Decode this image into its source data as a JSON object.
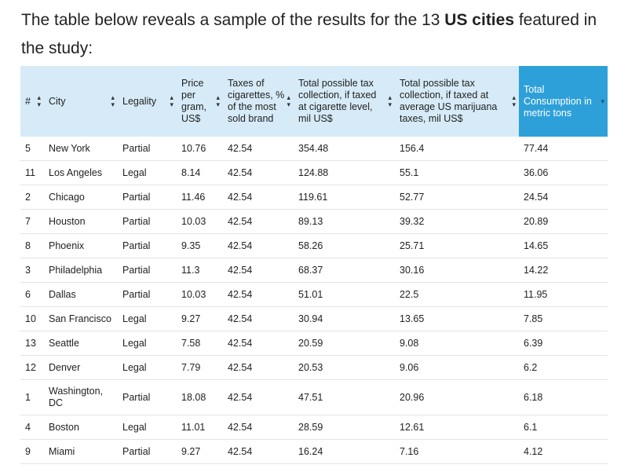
{
  "intro": {
    "text_before": "The table below reveals a sample of the results for the 13 ",
    "bold_text": "US cities",
    "text_after": " featured in the study:"
  },
  "table": {
    "headers": [
      {
        "label": "#",
        "sorted": false
      },
      {
        "label": "City",
        "sorted": false
      },
      {
        "label": "Legality",
        "sorted": false
      },
      {
        "label": "Price per gram, US$",
        "sorted": false
      },
      {
        "label": "Taxes of cigarettes, % of the most sold brand",
        "sorted": false
      },
      {
        "label": "Total possible tax collection, if taxed at cigarette level, mil US$",
        "sorted": false
      },
      {
        "label": "Total possible tax collection, if taxed at average US marijuana taxes, mil US$",
        "sorted": false
      },
      {
        "label": "Total Consumption in metric tons",
        "sorted": true
      }
    ],
    "rows": [
      [
        "5",
        "New York",
        "Partial",
        "10.76",
        "42.54",
        "354.48",
        "156.4",
        "77.44"
      ],
      [
        "11",
        "Los Angeles",
        "Legal",
        "8.14",
        "42.54",
        "124.88",
        "55.1",
        "36.06"
      ],
      [
        "2",
        "Chicago",
        "Partial",
        "11.46",
        "42.54",
        "119.61",
        "52.77",
        "24.54"
      ],
      [
        "7",
        "Houston",
        "Partial",
        "10.03",
        "42.54",
        "89.13",
        "39.32",
        "20.89"
      ],
      [
        "8",
        "Phoenix",
        "Partial",
        "9.35",
        "42.54",
        "58.26",
        "25.71",
        "14.65"
      ],
      [
        "3",
        "Philadelphia",
        "Partial",
        "11.3",
        "42.54",
        "68.37",
        "30.16",
        "14.22"
      ],
      [
        "6",
        "Dallas",
        "Partial",
        "10.03",
        "42.54",
        "51.01",
        "22.5",
        "11.95"
      ],
      [
        "10",
        "San Francisco",
        "Legal",
        "9.27",
        "42.54",
        "30.94",
        "13.65",
        "7.85"
      ],
      [
        "13",
        "Seattle",
        "Legal",
        "7.58",
        "42.54",
        "20.59",
        "9.08",
        "6.39"
      ],
      [
        "12",
        "Denver",
        "Legal",
        "7.79",
        "42.54",
        "20.53",
        "9.06",
        "6.2"
      ],
      [
        "1",
        "Washington, DC",
        "Partial",
        "18.08",
        "42.54",
        "47.51",
        "20.96",
        "6.18"
      ],
      [
        "4",
        "Boston",
        "Legal",
        "11.01",
        "42.54",
        "28.59",
        "12.61",
        "6.1"
      ],
      [
        "9",
        "Miami",
        "Partial",
        "9.27",
        "42.54",
        "16.24",
        "7.16",
        "4.12"
      ]
    ]
  },
  "colors": {
    "header_bg": "#d6ebf7",
    "sorted_header_bg": "#2ea0d9",
    "row_border": "#e3e3e3"
  }
}
